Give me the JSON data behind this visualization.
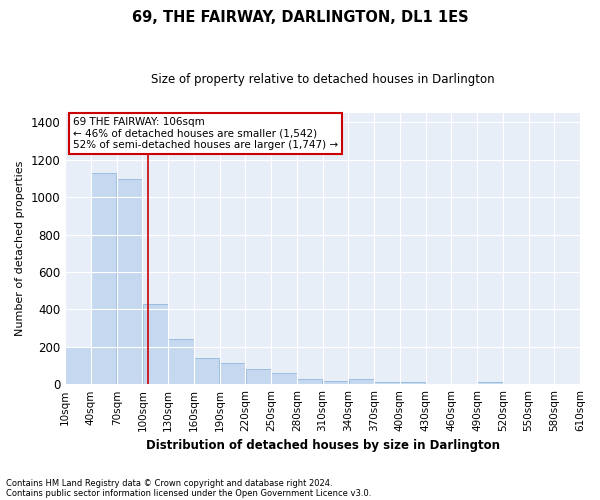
{
  "title": "69, THE FAIRWAY, DARLINGTON, DL1 1ES",
  "subtitle": "Size of property relative to detached houses in Darlington",
  "xlabel": "Distribution of detached houses by size in Darlington",
  "ylabel": "Number of detached properties",
  "footnote1": "Contains HM Land Registry data © Crown copyright and database right 2024.",
  "footnote2": "Contains public sector information licensed under the Open Government Licence v3.0.",
  "annotation_line1": "69 THE FAIRWAY: 106sqm",
  "annotation_line2": "← 46% of detached houses are smaller (1,542)",
  "annotation_line3": "52% of semi-detached houses are larger (1,747) →",
  "bar_color": "#c5d8f0",
  "bar_edge_color": "#9bbde0",
  "vline_color": "#cc0000",
  "vline_x": 106,
  "annotation_box_edge_color": "#cc0000",
  "plot_bg_color": "#e8eef8",
  "fig_bg_color": "#ffffff",
  "grid_color": "#ffffff",
  "bins": [
    10,
    40,
    70,
    100,
    130,
    160,
    190,
    220,
    250,
    280,
    310,
    340,
    370,
    400,
    430,
    460,
    490,
    520,
    550,
    580,
    610
  ],
  "counts": [
    200,
    1130,
    1100,
    430,
    240,
    140,
    115,
    80,
    60,
    28,
    20,
    28,
    10,
    10,
    0,
    0,
    10,
    0,
    0,
    0
  ],
  "ylim": [
    0,
    1450
  ],
  "yticks": [
    0,
    200,
    400,
    600,
    800,
    1000,
    1200,
    1400
  ],
  "figsize": [
    6.0,
    5.0
  ],
  "dpi": 100
}
